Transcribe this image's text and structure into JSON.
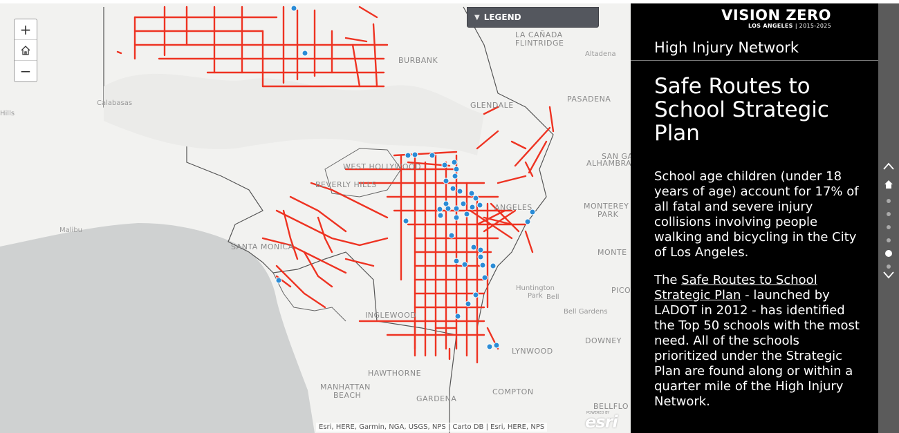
{
  "map": {
    "zoom_in_label": "+",
    "zoom_out_label": "−",
    "legend_label": "LEGEND",
    "attribution": "Esri, HERE, Garmin, NGA, USGS, NPS | Carto DB | Esri, HERE, NPS",
    "esri_logo": "esri",
    "esri_powered": "POWERED BY",
    "places": [
      {
        "name": "LA CAÑADA FLINTRIDGE",
        "line1": "LA CAÑADA",
        "line2": "FLINTRIDGE"
      },
      {
        "name": "Altadena"
      },
      {
        "name": "BURBANK"
      },
      {
        "name": "Calabasas"
      },
      {
        "name": "GLENDALE"
      },
      {
        "name": "PASADENA"
      },
      {
        "name": "SAN GA"
      },
      {
        "name": "ALHAMBRA"
      },
      {
        "name": "WEST HOLLYWOOD"
      },
      {
        "name": "BEVERLY HILLS"
      },
      {
        "name": "ANGELES"
      },
      {
        "name": "MONTEREY"
      },
      {
        "name": "PARK"
      },
      {
        "name": "Malibu"
      },
      {
        "name": "SANTA MONICA"
      },
      {
        "name": "MONTE"
      },
      {
        "name": "Huntington"
      },
      {
        "name": "Park"
      },
      {
        "name": "Bell"
      },
      {
        "name": "PICO"
      },
      {
        "name": "INGLEWOOD"
      },
      {
        "name": "Bell Gardens"
      },
      {
        "name": "DOWNEY"
      },
      {
        "name": "LYNWOOD"
      },
      {
        "name": "HAWTHORNE"
      },
      {
        "name": "MANHATTAN"
      },
      {
        "name": "BEACH"
      },
      {
        "name": "GARDENA"
      },
      {
        "name": "COMPTON"
      },
      {
        "name": "BELLFLO"
      },
      {
        "name": "Hills"
      }
    ]
  },
  "panel": {
    "logo_main": "VISION ZERO",
    "logo_sub_bold": "LOS ANGELES",
    "logo_sub_years": "| 2015-2025",
    "header": "High Injury Network",
    "title": "Safe Routes to School Strategic Plan",
    "para1": "School age children (under 18 years of age) account for 17% of all fatal and severe injury collisions involving people walking and bicycling in the City of Los Angeles.",
    "para2_prefix": "The ",
    "para2_link": "Safe Routes to School Strategic Plan",
    "para2_suffix": " - launched by LADOT in 2012 - has identified the Top 50 schools with the most need. All of the schools prioritized under the Strategic Plan are found along or within a quarter mile of the High Injury Network."
  },
  "nav": {
    "dots": 6,
    "active_dot": 4
  },
  "colors": {
    "network_line": "#ee3322",
    "school_dot": "#2b8cd6",
    "panel_bg": "#000000",
    "nav_bg": "#5b5b5b"
  }
}
